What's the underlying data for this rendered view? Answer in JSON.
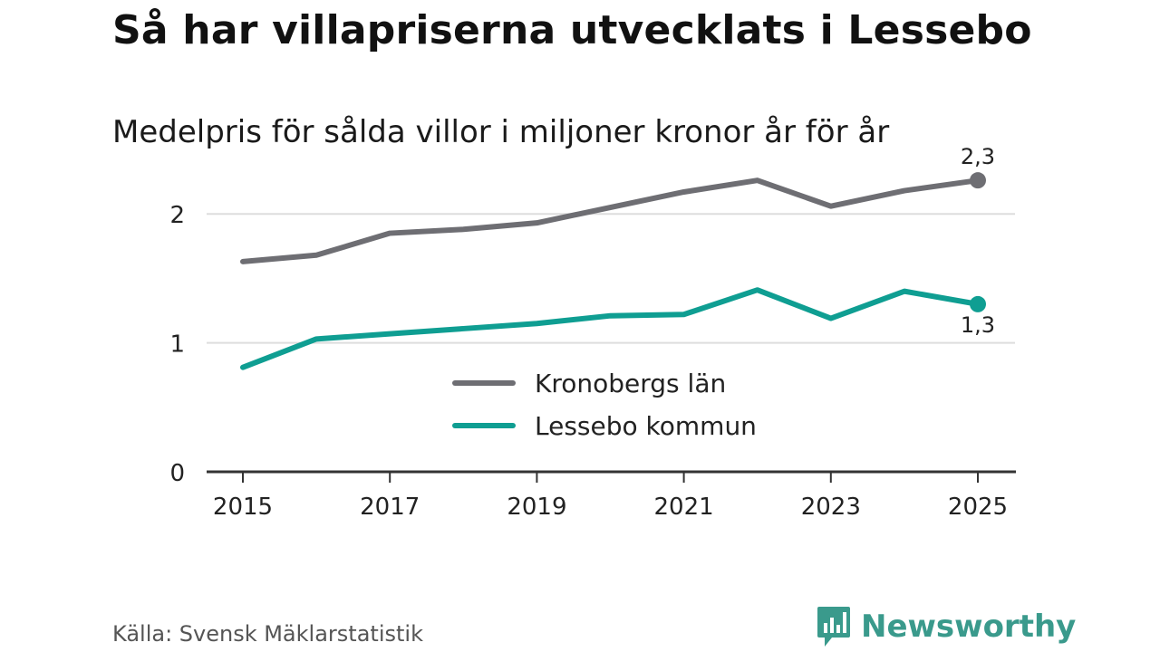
{
  "title": "Så har villapriserna utvecklats i Lessebo",
  "subtitle": "Medelpris för sålda villor i miljoner kronor år för år",
  "source": "Källa: Svensk Mäklarstatistik",
  "brand": {
    "name": "Newsworthy",
    "icon": "newsworthy-logo-icon",
    "color": "#3a9a8c"
  },
  "colors": {
    "kronoberg": "#6e6e73",
    "lessebo": "#0f9e92",
    "grid": "#dddddd",
    "axis": "#333333"
  },
  "chart_data": {
    "type": "line",
    "title": "Så har villapriserna utvecklats i Lessebo",
    "subtitle": "Medelpris för sålda villor i miljoner kronor år för år",
    "xlabel": "",
    "ylabel": "",
    "x": [
      2015,
      2016,
      2017,
      2018,
      2019,
      2020,
      2021,
      2022,
      2023,
      2024,
      2025
    ],
    "x_ticks": [
      2015,
      2017,
      2019,
      2021,
      2023,
      2025
    ],
    "x_tick_labels": [
      "2015",
      "2017",
      "2019",
      "2021",
      "2023",
      "2025"
    ],
    "y_ticks": [
      0,
      1,
      2
    ],
    "y_tick_labels": [
      "0",
      "1",
      "2"
    ],
    "ylim": [
      0,
      2.5
    ],
    "grid": true,
    "legend_position": "center",
    "series": [
      {
        "name": "Kronobergs län",
        "color_key": "kronoberg",
        "values": [
          1.63,
          1.68,
          1.85,
          1.88,
          1.93,
          2.05,
          2.17,
          2.26,
          2.06,
          2.18,
          2.26
        ],
        "end_label": "2,3",
        "end_label_position": "above"
      },
      {
        "name": "Lessebo kommun",
        "color_key": "lessebo",
        "values": [
          0.81,
          1.03,
          1.07,
          1.11,
          1.15,
          1.21,
          1.22,
          1.41,
          1.19,
          1.4,
          1.3
        ],
        "end_label": "1,3",
        "end_label_position": "below"
      }
    ]
  }
}
